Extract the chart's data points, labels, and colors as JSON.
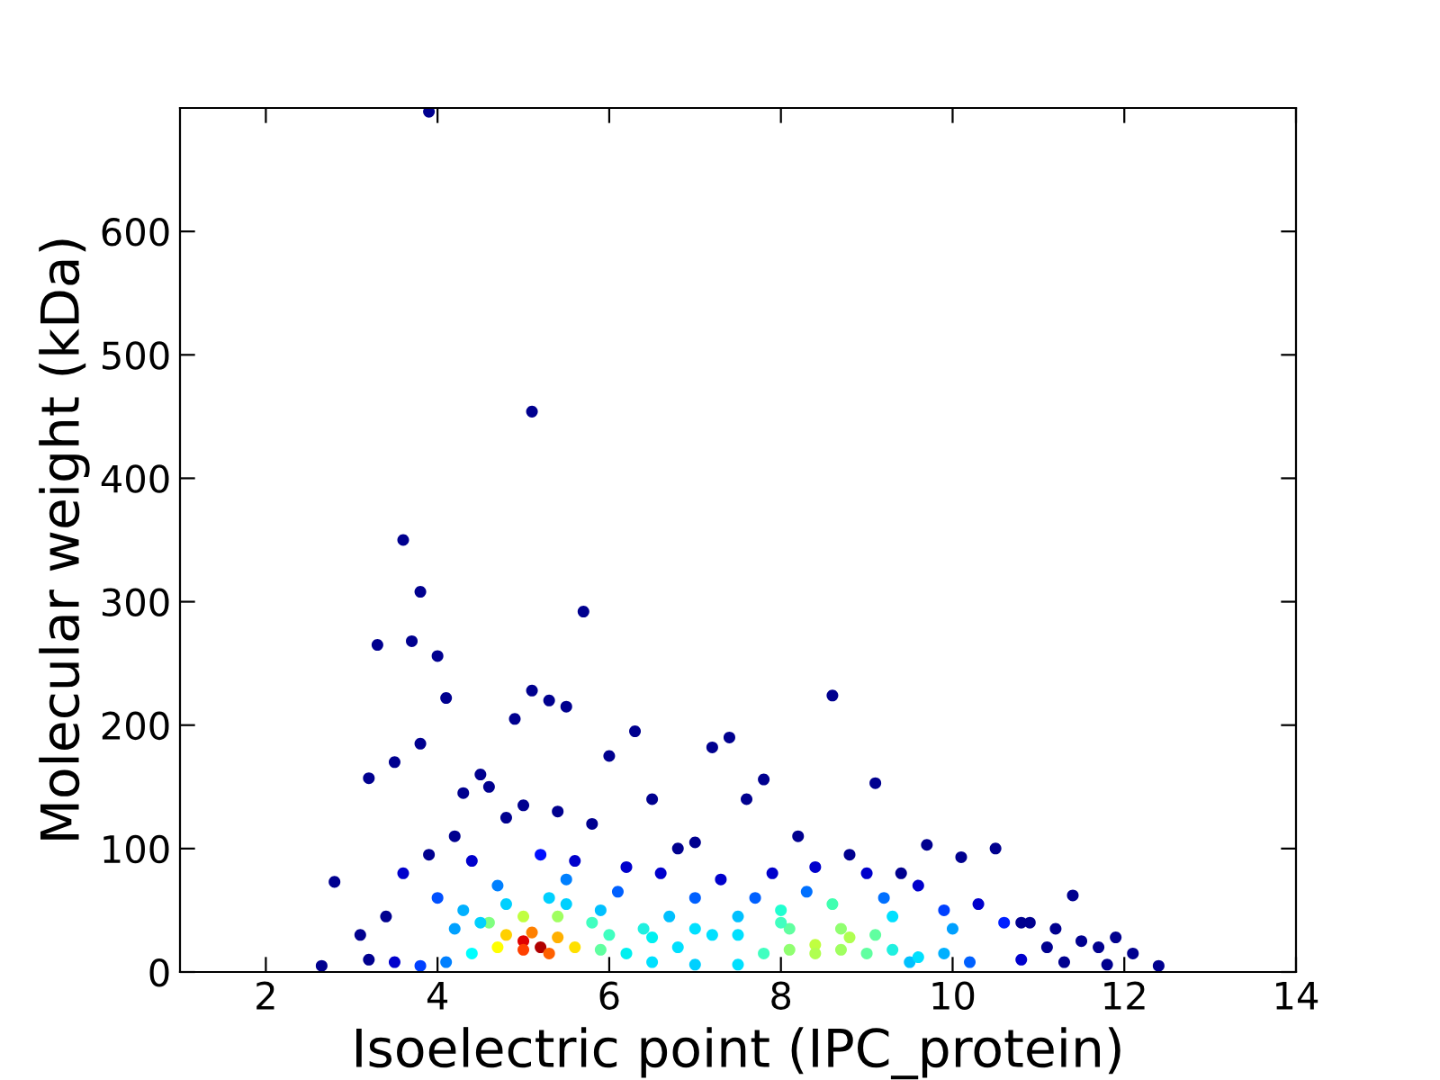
{
  "chart_data": {
    "type": "scatter",
    "xlabel": "Isoelectric point (IPC_protein)",
    "ylabel": "Molecular weight (kDa)",
    "xlim": [
      1,
      14
    ],
    "ylim": [
      0,
      700
    ],
    "xticks": [
      2,
      4,
      6,
      8,
      10,
      12,
      14
    ],
    "yticks": [
      0,
      100,
      200,
      300,
      400,
      500,
      600
    ],
    "grid": false,
    "marker": "circle",
    "x": [
      3.9,
      5.1,
      3.6,
      3.8,
      5.7,
      3.3,
      3.7,
      4.0,
      8.6,
      5.1,
      4.1,
      5.3,
      5.5,
      4.9,
      6.3,
      7.4,
      7.2,
      3.5,
      3.2,
      3.8,
      9.1,
      7.8,
      2.8,
      2.65,
      12.4,
      11.9,
      11.4,
      10.5,
      10.1,
      9.7,
      4.5,
      6.0,
      6.5,
      7.6,
      4.3,
      4.6,
      5.0,
      5.4,
      5.8,
      4.2,
      4.8,
      3.9,
      6.8,
      7.0,
      8.2,
      8.8,
      9.4,
      3.4,
      3.1,
      10.8,
      11.2,
      11.7,
      12.1,
      3.6,
      4.4,
      5.2,
      5.6,
      6.2,
      6.6,
      7.3,
      7.9,
      8.4,
      9.0,
      9.6,
      10.3,
      10.9,
      11.5,
      4.0,
      4.7,
      5.5,
      6.1,
      7.0,
      7.7,
      8.3,
      9.2,
      9.9,
      10.6,
      11.1,
      4.3,
      4.8,
      5.3,
      5.9,
      6.7,
      7.5,
      8.0,
      8.6,
      9.3,
      10.0,
      4.6,
      5.0,
      5.4,
      5.8,
      6.4,
      7.2,
      8.1,
      8.7,
      9.1,
      4.8,
      5.1,
      5.4,
      8.4,
      8.8,
      5.0,
      5.2,
      3.2,
      3.5,
      3.8,
      4.1,
      6.5,
      7.0,
      7.5,
      9.5,
      10.2,
      10.8,
      11.3,
      11.8,
      4.4,
      4.7,
      5.0,
      5.3,
      5.6,
      5.9,
      6.2,
      6.8,
      7.8,
      8.1,
      8.4,
      8.7,
      9.0,
      9.3,
      9.6,
      9.9,
      4.2,
      4.5,
      5.5,
      6.0,
      6.5,
      7.0,
      7.5,
      8.0
    ],
    "values": [
      697,
      454,
      350,
      308,
      292,
      265,
      268,
      256,
      224,
      228,
      222,
      220,
      215,
      205,
      195,
      190,
      182,
      170,
      157,
      185,
      153,
      156,
      73,
      5,
      5,
      28,
      62,
      100,
      93,
      103,
      160,
      175,
      140,
      140,
      145,
      150,
      135,
      130,
      120,
      110,
      125,
      95,
      100,
      105,
      110,
      95,
      80,
      45,
      30,
      40,
      35,
      20,
      15,
      80,
      90,
      95,
      90,
      85,
      80,
      75,
      80,
      85,
      80,
      70,
      55,
      40,
      25,
      60,
      70,
      75,
      65,
      60,
      60,
      65,
      60,
      50,
      40,
      20,
      50,
      55,
      60,
      50,
      45,
      45,
      50,
      55,
      45,
      35,
      40,
      45,
      45,
      40,
      35,
      30,
      35,
      35,
      30,
      30,
      32,
      28,
      22,
      28,
      25,
      20,
      10,
      8,
      5,
      8,
      8,
      6,
      6,
      8,
      8,
      10,
      8,
      6,
      15,
      20,
      18,
      15,
      20,
      18,
      15,
      20,
      15,
      18,
      15,
      18,
      15,
      18,
      12,
      15,
      35,
      40,
      55,
      30,
      28,
      35,
      30,
      40
    ],
    "colors": [
      "#00008f",
      "#00008f",
      "#00008f",
      "#00008f",
      "#00008f",
      "#00008f",
      "#00008f",
      "#00008f",
      "#00008f",
      "#00008f",
      "#00008f",
      "#00008f",
      "#00008f",
      "#00008f",
      "#00008f",
      "#00008f",
      "#00008f",
      "#00008f",
      "#00008f",
      "#00008f",
      "#00008f",
      "#00008f",
      "#00008f",
      "#00008f",
      "#00008f",
      "#00008f",
      "#00008f",
      "#00008f",
      "#00008f",
      "#00008f",
      "#00008f",
      "#00008f",
      "#00008f",
      "#00008f",
      "#00008f",
      "#00008f",
      "#00008f",
      "#00008f",
      "#00008f",
      "#00008f",
      "#00008f",
      "#00008f",
      "#00008f",
      "#00008f",
      "#00008f",
      "#00008f",
      "#00008f",
      "#00008f",
      "#00008f",
      "#00008f",
      "#00008f",
      "#00008f",
      "#00008f",
      "#0000cc",
      "#0000cc",
      "#0010ff",
      "#0000cc",
      "#0000cc",
      "#0000cc",
      "#0000cc",
      "#0000cc",
      "#0000cc",
      "#0000cc",
      "#0000cc",
      "#0000cc",
      "#00008f",
      "#00008f",
      "#0050ff",
      "#0080ff",
      "#0080ff",
      "#0060ff",
      "#0060ff",
      "#0060ff",
      "#0070ff",
      "#0070ff",
      "#0040ff",
      "#0020ff",
      "#00008f",
      "#00b0ff",
      "#00d0ff",
      "#00d0ff",
      "#00c0ff",
      "#00c0ff",
      "#00c0ff",
      "#20ffd0",
      "#40ffb0",
      "#00e0ff",
      "#00a0ff",
      "#80ff80",
      "#c0ff40",
      "#a0ff60",
      "#40ffc0",
      "#20f0e0",
      "#00e0ff",
      "#60ffa0",
      "#90ff70",
      "#60ffa0",
      "#ffd000",
      "#ff8000",
      "#ffb000",
      "#c0ff40",
      "#b0ff50",
      "#e00000",
      "#b00000",
      "#00008f",
      "#0000cc",
      "#0040ff",
      "#0080ff",
      "#00e0ff",
      "#00d0ff",
      "#00e0ff",
      "#00c0ff",
      "#0060ff",
      "#0000cc",
      "#00008f",
      "#00008f",
      "#00ffff",
      "#ffff00",
      "#ff4000",
      "#ff6000",
      "#ffe000",
      "#60ffa0",
      "#00f0f0",
      "#00e0ff",
      "#40ffc0",
      "#90ff70",
      "#b0ff50",
      "#a0ff60",
      "#60ffa0",
      "#20f0e0",
      "#00e0ff",
      "#00b0ff",
      "#00a0ff",
      "#00d0ff",
      "#00d0ff",
      "#40ffc0",
      "#00f0f0",
      "#00e0ff",
      "#00e0ff",
      "#40ffc0"
    ]
  }
}
